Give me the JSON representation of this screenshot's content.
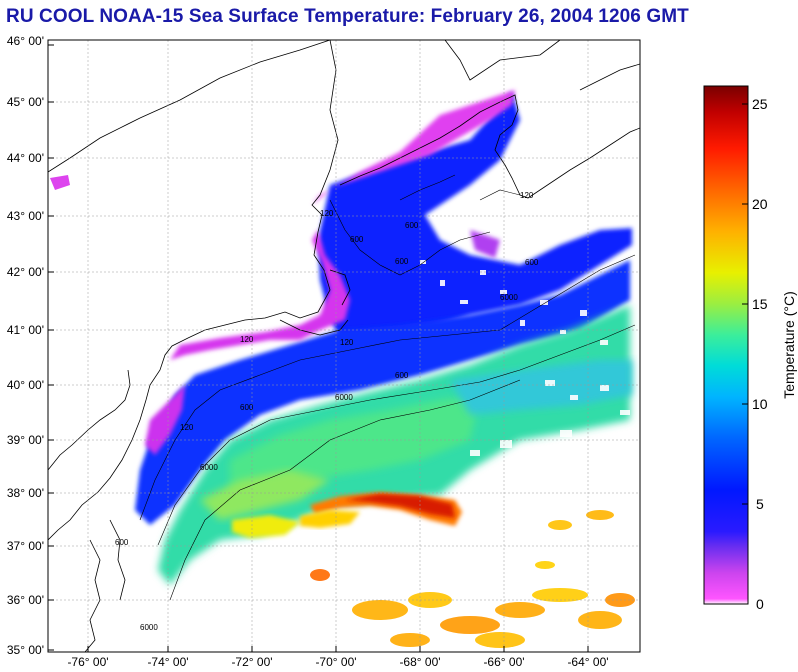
{
  "title": "RU COOL  NOAA-15  Sea Surface Temperature:  February 26, 2004 1206 GMT",
  "map": {
    "lat_labels": [
      "46° 00'",
      "45° 00'",
      "44° 00'",
      "43° 00'",
      "42° 00'",
      "41° 00'",
      "40° 00'",
      "39° 00'",
      "38° 00'",
      "37° 00'",
      "36° 00'",
      "35° 00'"
    ],
    "lon_labels": [
      "-76° 00'",
      "-74° 00'",
      "-72° 00'",
      "-70° 00'",
      "-68° 00'",
      "-66° 00'",
      "-64° 00'"
    ],
    "lat_range": [
      35,
      46
    ],
    "lon_range": [
      -77,
      -62.3
    ],
    "contour_labels": [
      "120",
      "600",
      "600",
      "600",
      "120",
      "120",
      "600",
      "6000",
      "600",
      "6000",
      "6000",
      "600",
      "120",
      "600",
      "6000",
      "120"
    ]
  },
  "colorbar": {
    "label": "Temperature (°C)",
    "ticks": [
      "0",
      "5",
      "10",
      "15",
      "20",
      "25"
    ],
    "range": [
      0,
      26
    ],
    "colors": [
      "#ff55ff",
      "#cc44ee",
      "#7a33ee",
      "#1010ff",
      "#0055ff",
      "#00aaff",
      "#00dddd",
      "#33ee99",
      "#aaee33",
      "#ffee00",
      "#ffaa00",
      "#ff6600",
      "#ff2200",
      "#cc0000",
      "#880000"
    ]
  }
}
